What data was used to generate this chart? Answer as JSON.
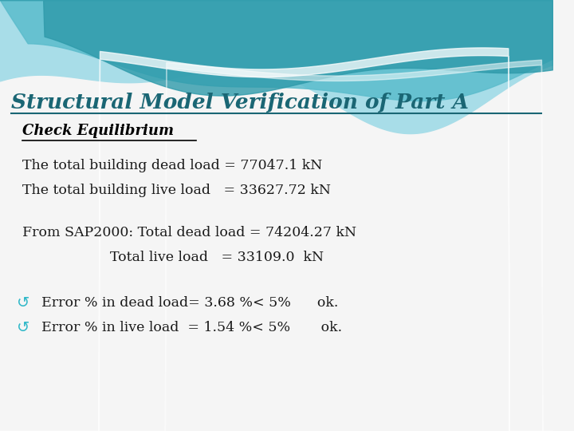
{
  "title": "Structural Model Verification of Part A",
  "subtitle": "Check Equilibrium",
  "line1": "The total building dead load = 77047.1 kN",
  "line2": "The total building live load   = 33627.72 kN",
  "line3": "From SAP2000: Total dead load = 74204.27 kN",
  "line4": "                    Total live load   = 33109.0  kN",
  "line5_sym": "↺",
  "line5_text": "Error % in dead load= 3.68 %< 5%      ok.",
  "line6_sym": "↺",
  "line6_text": "Error % in live load  = 1.54 %< 5%       ok.",
  "title_color": "#1a6674",
  "subtitle_color": "#000000",
  "text_color": "#1a1a1a",
  "error_sym_color": "#30b8c8",
  "bg_color": "#f5f5f5",
  "wave_light": "#a8dde8",
  "wave_mid": "#5bbccc",
  "wave_dark": "#2e9aaa",
  "wave_white": "#e8f8fa"
}
